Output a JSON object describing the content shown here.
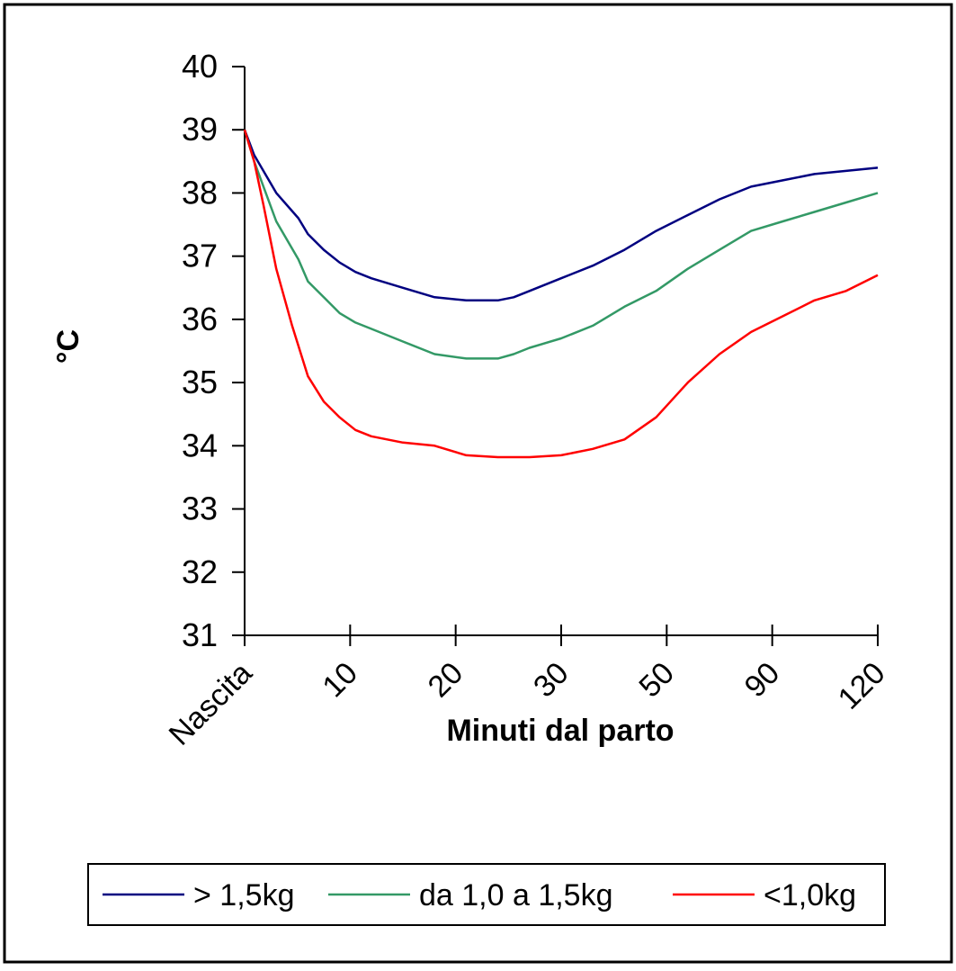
{
  "chart_data": {
    "type": "line",
    "title": "",
    "xlabel": "Minuti dal parto",
    "ylabel": "°C",
    "ylim": [
      31,
      40
    ],
    "yticks": [
      31,
      32,
      33,
      34,
      35,
      36,
      37,
      38,
      39,
      40
    ],
    "x_tick_labels": [
      "Nascita",
      "10",
      "20",
      "30",
      "50",
      "90",
      "120"
    ],
    "grid": false,
    "legend_position": "bottom",
    "series": [
      {
        "name": "> 1,5kg",
        "color": "#000080",
        "points": [
          [
            0,
            39.0
          ],
          [
            0.15,
            38.6
          ],
          [
            0.5,
            38.0
          ],
          [
            0.85,
            37.6
          ],
          [
            1.0,
            37.35
          ],
          [
            1.25,
            37.1
          ],
          [
            1.5,
            36.9
          ],
          [
            1.75,
            36.75
          ],
          [
            2.0,
            36.65
          ],
          [
            2.5,
            36.5
          ],
          [
            3.0,
            36.35
          ],
          [
            3.5,
            36.3
          ],
          [
            4.0,
            36.3
          ],
          [
            4.25,
            36.35
          ],
          [
            4.5,
            36.45
          ],
          [
            5.0,
            36.65
          ],
          [
            5.5,
            36.85
          ],
          [
            6.0,
            37.1
          ],
          [
            6.5,
            37.4
          ],
          [
            7.0,
            37.65
          ],
          [
            7.5,
            37.9
          ],
          [
            8.0,
            38.1
          ],
          [
            8.5,
            38.2
          ],
          [
            9.0,
            38.3
          ],
          [
            9.5,
            38.35
          ],
          [
            10.0,
            38.4
          ]
        ]
      },
      {
        "name": "da 1,0 a 1,5kg",
        "color": "#339966",
        "points": [
          [
            0,
            39.0
          ],
          [
            0.15,
            38.5
          ],
          [
            0.5,
            37.55
          ],
          [
            0.85,
            36.95
          ],
          [
            1.0,
            36.6
          ],
          [
            1.25,
            36.35
          ],
          [
            1.5,
            36.1
          ],
          [
            1.75,
            35.95
          ],
          [
            2.0,
            35.85
          ],
          [
            2.5,
            35.65
          ],
          [
            3.0,
            35.45
          ],
          [
            3.5,
            35.38
          ],
          [
            4.0,
            35.38
          ],
          [
            4.25,
            35.45
          ],
          [
            4.5,
            35.55
          ],
          [
            5.0,
            35.7
          ],
          [
            5.5,
            35.9
          ],
          [
            6.0,
            36.2
          ],
          [
            6.5,
            36.45
          ],
          [
            7.0,
            36.8
          ],
          [
            7.5,
            37.1
          ],
          [
            8.0,
            37.4
          ],
          [
            8.5,
            37.55
          ],
          [
            9.0,
            37.7
          ],
          [
            9.5,
            37.85
          ],
          [
            10.0,
            38.0
          ]
        ]
      },
      {
        "name": "<1,0kg",
        "color": "#ff0000",
        "points": [
          [
            0,
            39.0
          ],
          [
            0.15,
            38.5
          ],
          [
            0.3,
            37.8
          ],
          [
            0.5,
            36.8
          ],
          [
            0.75,
            35.9
          ],
          [
            1.0,
            35.1
          ],
          [
            1.25,
            34.7
          ],
          [
            1.5,
            34.45
          ],
          [
            1.75,
            34.25
          ],
          [
            2.0,
            34.15
          ],
          [
            2.5,
            34.05
          ],
          [
            3.0,
            34.0
          ],
          [
            3.5,
            33.85
          ],
          [
            4.0,
            33.82
          ],
          [
            4.5,
            33.82
          ],
          [
            5.0,
            33.85
          ],
          [
            5.5,
            33.95
          ],
          [
            6.0,
            34.1
          ],
          [
            6.5,
            34.45
          ],
          [
            7.0,
            35.0
          ],
          [
            7.5,
            35.45
          ],
          [
            8.0,
            35.8
          ],
          [
            8.5,
            36.05
          ],
          [
            9.0,
            36.3
          ],
          [
            9.5,
            36.45
          ],
          [
            10.0,
            36.7
          ]
        ]
      }
    ]
  }
}
